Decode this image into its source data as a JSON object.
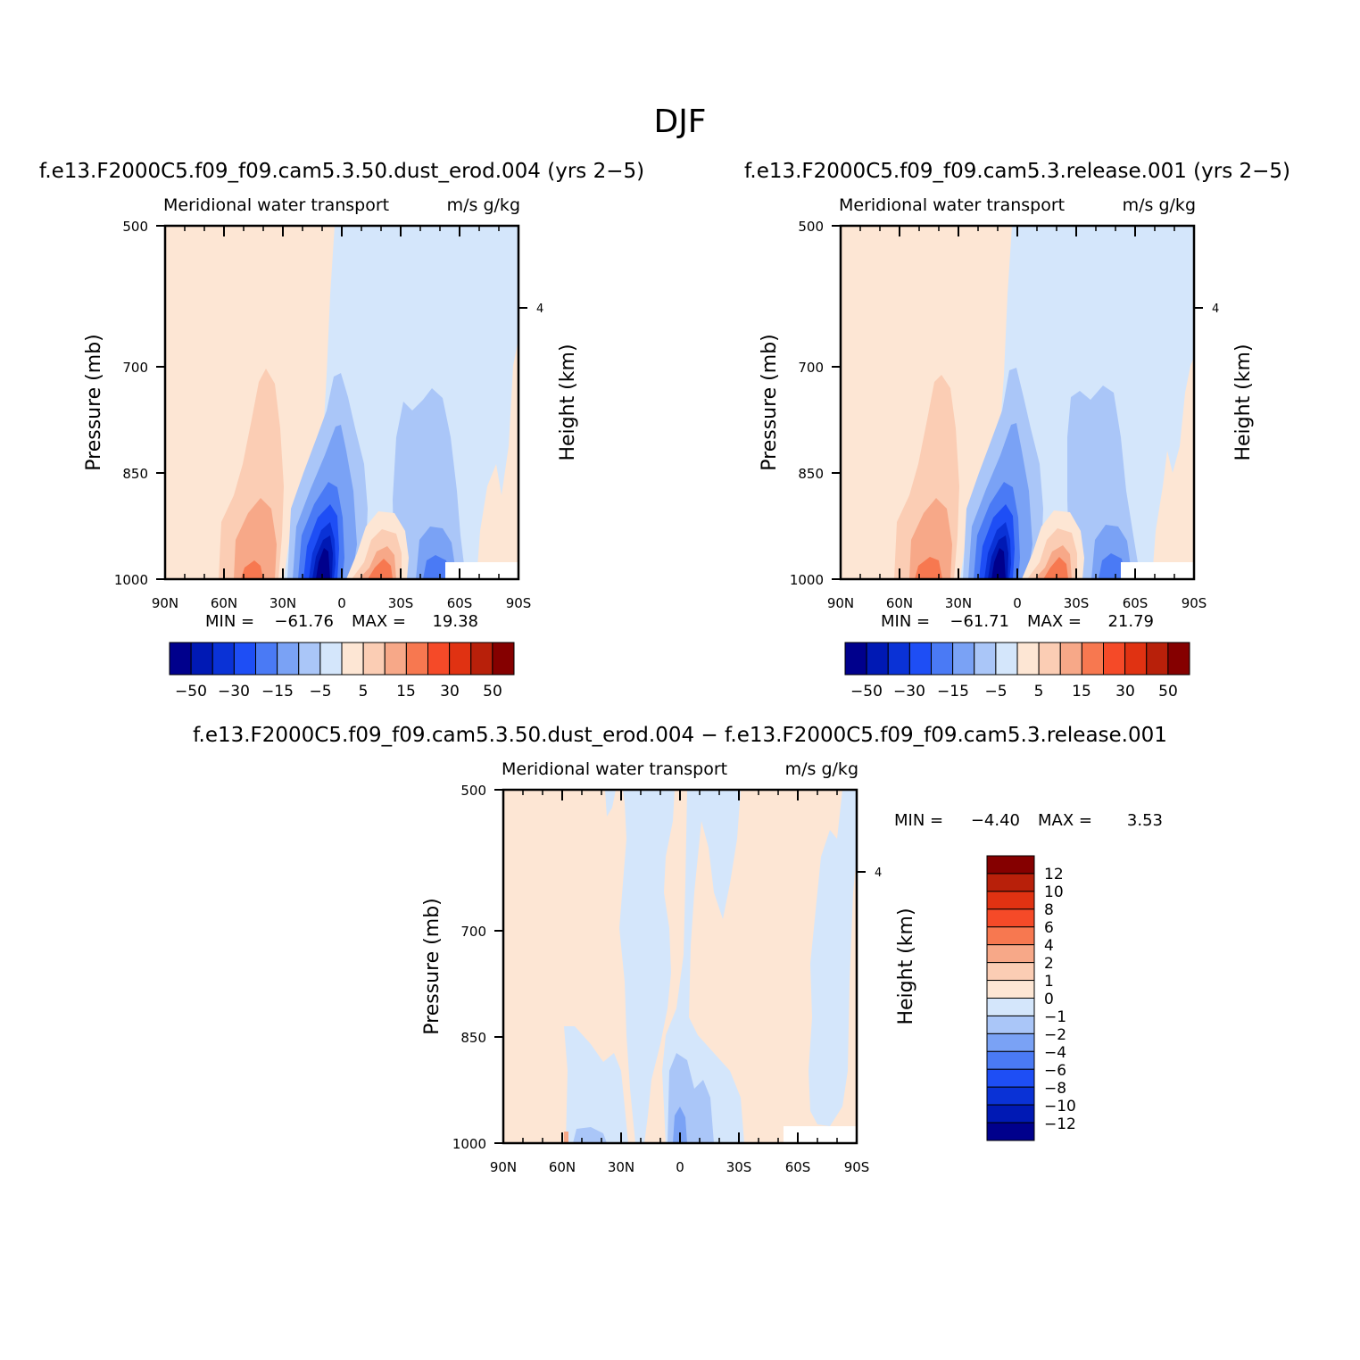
{
  "figure": {
    "title": "DJF"
  },
  "colors": {
    "main_levels": [
      -50,
      -40,
      -30,
      -20,
      -15,
      -10,
      -5,
      0,
      5,
      10,
      15,
      20,
      30,
      40,
      50
    ],
    "main_fills": [
      "#00008c",
      "#0019b4",
      "#0a32d6",
      "#1e4ef5",
      "#4a7af5",
      "#7aa2f5",
      "#aac6f8",
      "#d4e6fb",
      "#fde6d4",
      "#fbcdb4",
      "#f7a888",
      "#f77850",
      "#f54a28",
      "#e03212",
      "#b8200a",
      "#850000"
    ],
    "diff_levels": [
      -12,
      -10,
      -8,
      -6,
      -4,
      -2,
      -1,
      0,
      1,
      2,
      4,
      6,
      8,
      10,
      12
    ],
    "diff_fills": [
      "#00008c",
      "#0019b4",
      "#0a32d6",
      "#1e4ef5",
      "#4a7af5",
      "#7aa2f5",
      "#aac6f8",
      "#d4e6fb",
      "#fde6d4",
      "#fbcdb4",
      "#f7a888",
      "#f77850",
      "#f54a28",
      "#e03212",
      "#b8200a",
      "#850000"
    ]
  },
  "chart_data": [
    {
      "type": "heatmap",
      "case": "f.e13.F2000C5.f09_f09.cam5.3.50.dust_erod.004 (yrs 2−5)",
      "title": "Meridional water transport",
      "units": "m/s g/kg",
      "ylabel": "Pressure (mb)",
      "ylabel_right": "Height (km)",
      "yticks": [
        "500",
        "700",
        "850",
        "1000"
      ],
      "yticks_right": [
        "4"
      ],
      "xticks": [
        "90N",
        "60N",
        "30N",
        "0",
        "30S",
        "60S",
        "90S"
      ],
      "stats": {
        "min_label": "MIN =",
        "min": "−61.76",
        "max_label": "MAX =",
        "max": "19.38"
      },
      "colorbar_labels": [
        "−50",
        "−30",
        "−15",
        "−5",
        "5",
        "15",
        "30",
        "50"
      ],
      "xlim": [
        90,
        -90
      ],
      "ylim": [
        1000,
        500
      ],
      "features": [
        {
          "lat": 20,
          "p": 920,
          "value": -61.76
        },
        {
          "lat": 40,
          "p": 960,
          "value": 19.38
        },
        {
          "lat": -20,
          "p": 960,
          "value": 15
        },
        {
          "lat": -45,
          "p": 950,
          "value": -12
        },
        {
          "lat": -75,
          "p": 900,
          "value": 3
        }
      ]
    },
    {
      "type": "heatmap",
      "case": "f.e13.F2000C5.f09_f09.cam5.3.release.001 (yrs 2−5)",
      "title": "Meridional water transport",
      "units": "m/s g/kg",
      "ylabel": "Pressure (mb)",
      "ylabel_right": "Height (km)",
      "yticks": [
        "500",
        "700",
        "850",
        "1000"
      ],
      "yticks_right": [
        "4"
      ],
      "xticks": [
        "90N",
        "60N",
        "30N",
        "0",
        "30S",
        "60S",
        "90S"
      ],
      "stats": {
        "min_label": "MIN =",
        "min": "−61.71",
        "max_label": "MAX =",
        "max": "21.79"
      },
      "colorbar_labels": [
        "−50",
        "−30",
        "−15",
        "−5",
        "5",
        "15",
        "30",
        "50"
      ],
      "xlim": [
        90,
        -90
      ],
      "ylim": [
        1000,
        500
      ],
      "features": [
        {
          "lat": 20,
          "p": 920,
          "value": -61.71
        },
        {
          "lat": 40,
          "p": 960,
          "value": 21.79
        },
        {
          "lat": -20,
          "p": 960,
          "value": 15
        },
        {
          "lat": -45,
          "p": 950,
          "value": -12
        },
        {
          "lat": -75,
          "p": 900,
          "value": 3
        }
      ]
    },
    {
      "type": "heatmap",
      "case": "f.e13.F2000C5.f09_f09.cam5.3.50.dust_erod.004 − f.e13.F2000C5.f09_f09.cam5.3.release.001",
      "title": "Meridional water transport",
      "units": "m/s g/kg",
      "ylabel": "Pressure (mb)",
      "ylabel_right": "Height (km)",
      "yticks": [
        "500",
        "700",
        "850",
        "1000"
      ],
      "yticks_right": [
        "4"
      ],
      "xticks": [
        "90N",
        "60N",
        "30N",
        "0",
        "30S",
        "60S",
        "90S"
      ],
      "stats": {
        "min_label": "MIN =",
        "min": "−4.40",
        "max_label": "MAX =",
        "max": "3.53"
      },
      "colorbar_labels": [
        "12",
        "10",
        "8",
        "6",
        "4",
        "2",
        "1",
        "0",
        "−1",
        "−2",
        "−4",
        "−6",
        "−8",
        "−10",
        "−12"
      ],
      "xlim": [
        90,
        -90
      ],
      "ylim": [
        1000,
        500
      ],
      "features": [
        {
          "lat": 0,
          "p": 950,
          "value": -4.4
        },
        {
          "lat": 58,
          "p": 995,
          "value": 3.53
        }
      ]
    }
  ]
}
